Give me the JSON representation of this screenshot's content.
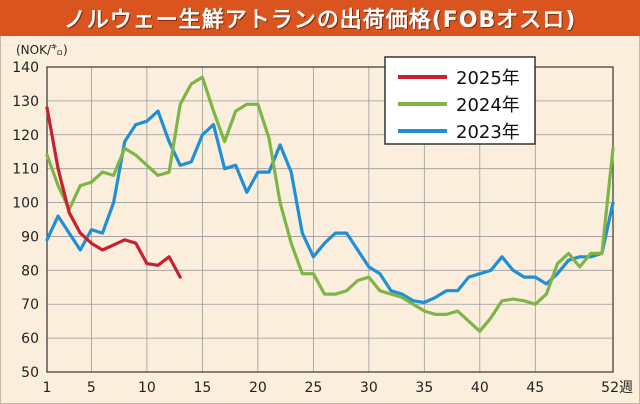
{
  "title": "ノルウェー生鮮アトランの出荷価格(FOBオスロ)",
  "chart_data": {
    "type": "line",
    "ylabel": "(NOK/㌔)",
    "ylim": [
      50,
      140
    ],
    "xlim": [
      1,
      52
    ],
    "y_ticks": [
      "50",
      "60",
      "70",
      "80",
      "90",
      "100",
      "110",
      "120",
      "130",
      "140"
    ],
    "x_ticks": [
      "1",
      "5",
      "10",
      "15",
      "20",
      "25",
      "30",
      "35",
      "40",
      "45",
      "52週"
    ],
    "grid": true,
    "legend_position": "top-right",
    "series": [
      {
        "name": "2025年",
        "color": "#c8202f",
        "x": [
          1,
          2,
          3,
          4,
          5,
          6,
          7,
          8,
          9,
          10,
          11,
          12,
          13
        ],
        "values": [
          128,
          110,
          97,
          91,
          88,
          86,
          87.5,
          89,
          88,
          82,
          81.5,
          84,
          78
        ]
      },
      {
        "name": "2024年",
        "color": "#7fb547",
        "x": [
          1,
          2,
          3,
          4,
          5,
          6,
          7,
          8,
          9,
          10,
          11,
          12,
          13,
          14,
          15,
          16,
          17,
          18,
          19,
          20,
          21,
          22,
          23,
          24,
          25,
          26,
          27,
          28,
          29,
          30,
          31,
          32,
          33,
          34,
          35,
          36,
          37,
          38,
          39,
          40,
          41,
          42,
          43,
          44,
          45,
          46,
          47,
          48,
          49,
          50,
          51,
          52
        ],
        "values": [
          114,
          105,
          98,
          105,
          106,
          109,
          108,
          116,
          114,
          111,
          108,
          109,
          129,
          135,
          137,
          127,
          118,
          127,
          129,
          129,
          119,
          100,
          88,
          79,
          79,
          73,
          73,
          74,
          77,
          78,
          74,
          73,
          72,
          70,
          68,
          67,
          67,
          68,
          65,
          62,
          66,
          71,
          71.5,
          71,
          70,
          73,
          82,
          85,
          81,
          85,
          85,
          116
        ]
      },
      {
        "name": "2023年",
        "color": "#1f8fd6",
        "x": [
          1,
          2,
          3,
          4,
          5,
          6,
          7,
          8,
          9,
          10,
          11,
          12,
          13,
          14,
          15,
          16,
          17,
          18,
          19,
          20,
          21,
          22,
          23,
          24,
          25,
          26,
          27,
          28,
          29,
          30,
          31,
          32,
          33,
          34,
          35,
          36,
          37,
          38,
          39,
          40,
          41,
          42,
          43,
          44,
          45,
          46,
          47,
          48,
          49,
          50,
          51,
          52
        ],
        "values": [
          89,
          96,
          91,
          86,
          92,
          91,
          100,
          118,
          123,
          124,
          127,
          118,
          111,
          112,
          120,
          123,
          110,
          111,
          103,
          109,
          109,
          117,
          109,
          91,
          84,
          88,
          91,
          91,
          86,
          81,
          79,
          74,
          73,
          71,
          70.5,
          72,
          74,
          74,
          78,
          79,
          80,
          84,
          80,
          78,
          78,
          76,
          79,
          83,
          84,
          84,
          85,
          100
        ]
      }
    ]
  }
}
